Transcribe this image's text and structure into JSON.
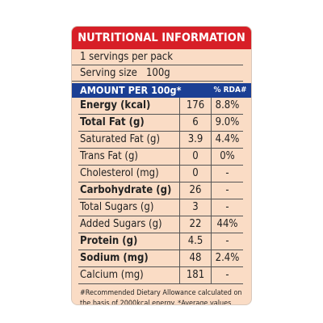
{
  "title": "NUTRITIONAL INFORMATION",
  "servings": "1 servings per pack",
  "serving_size": {
    "label": "Serving size",
    "value": "100g"
  },
  "table": {
    "header": [
      "AMOUNT PER  100g*",
      "% RDA#"
    ],
    "rows": [
      {
        "name": "Energy (kcal)",
        "amount": "176",
        "rda": "8.8%",
        "bold": true
      },
      {
        "name": "Total Fat (g)",
        "amount": "6",
        "rda": "9.0%",
        "bold": true
      },
      {
        "name": "Saturated Fat (g)",
        "amount": "3.9",
        "rda": "4.4%",
        "bold": false
      },
      {
        "name": "Trans Fat (g)",
        "amount": "0",
        "rda": "0%",
        "bold": false
      },
      {
        "name": "Cholesterol (mg)",
        "amount": "0",
        "rda": "-",
        "bold": false
      },
      {
        "name": "Carbohydrate (g)",
        "amount": "26",
        "rda": "-",
        "bold": true
      },
      {
        "name": "Total Sugars (g)",
        "amount": "3",
        "rda": "-",
        "bold": false
      },
      {
        "name": "Added Sugars (g)",
        "amount": "22",
        "rda": "44%",
        "bold": false
      },
      {
        "name": "Protein (g)",
        "amount": "4.5",
        "rda": "-",
        "bold": true
      },
      {
        "name": "Sodium (mg)",
        "amount": "48",
        "rda": "2.4%",
        "bold": true
      },
      {
        "name": "Calcium (mg)",
        "amount": "181",
        "rda": "-",
        "bold": false
      }
    ]
  },
  "footnote": "#Recommended Dietary Allowance calculated on the basis of 2000kcal energy. *Average values"
}
